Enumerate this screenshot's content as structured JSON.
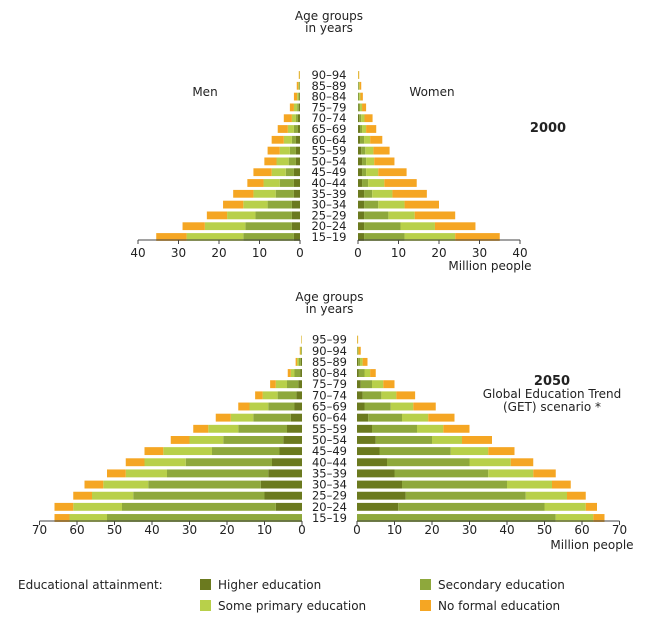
{
  "colors": {
    "higher": "#6b7a1f",
    "secondary": "#8ea83c",
    "primary": "#b8d04a",
    "none": "#f5a623"
  },
  "legend": {
    "title": "Educational attainment:",
    "items": [
      {
        "key": "higher",
        "label": "Higher education"
      },
      {
        "key": "secondary",
        "label": "Secondary education"
      },
      {
        "key": "primary",
        "label": "Some primary education"
      },
      {
        "key": "none",
        "label": "No formal education"
      }
    ]
  },
  "chart_data": [
    {
      "type": "bar",
      "title": "2000",
      "subtitle": "",
      "center_title": [
        "Age groups",
        "in years"
      ],
      "left_label": "Men",
      "right_label": "Women",
      "xlabel": "Million people",
      "xlim": [
        0,
        40
      ],
      "xticks": [
        0,
        10,
        20,
        30,
        40
      ],
      "categories": [
        "15–19",
        "20–24",
        "25–29",
        "30–34",
        "35–39",
        "40–44",
        "45–49",
        "50–54",
        "55–59",
        "60–64",
        "65–69",
        "70–74",
        "75–79",
        "80–84",
        "85–89",
        "90–94"
      ],
      "men": {
        "higher": [
          1.5,
          2,
          2,
          2,
          1.5,
          1.5,
          1.5,
          1,
          1,
          1,
          0.5,
          0.5,
          0.3,
          0.2,
          0.1,
          0.0
        ],
        "secondary": [
          12.5,
          11.5,
          9,
          6,
          4.5,
          3.5,
          2,
          1.8,
          1.5,
          1,
          1,
          0.5,
          0.4,
          0.2,
          0.1,
          0.0
        ],
        "primary": [
          14,
          10,
          7,
          6,
          5.5,
          4,
          3.5,
          3,
          2.5,
          2,
          1.5,
          1,
          0.8,
          0.3,
          0.2,
          0.1
        ],
        "none": [
          7.5,
          5.5,
          5,
          5,
          5,
          4,
          4.5,
          3,
          3,
          3,
          2.5,
          2,
          1,
          0.8,
          0.4,
          0.2
        ]
      },
      "women": {
        "higher": [
          1.5,
          1.5,
          1.5,
          1.5,
          1.5,
          1,
          1,
          1,
          0.8,
          0.5,
          0.5,
          0.3,
          0.2,
          0.1,
          0.1,
          0.0
        ],
        "secondary": [
          10,
          9,
          6,
          3.5,
          2,
          1.5,
          1,
          1,
          1,
          1,
          0.5,
          0.5,
          0.3,
          0.2,
          0.1,
          0.0
        ],
        "primary": [
          12.5,
          8.5,
          6.5,
          6.5,
          5,
          4,
          3,
          2,
          2,
          1.5,
          1,
          0.8,
          0.5,
          0.3,
          0.2,
          0.1
        ],
        "none": [
          11,
          10,
          10,
          8.5,
          8.5,
          8,
          7,
          5,
          4,
          3,
          2.5,
          2,
          1,
          0.6,
          0.4,
          0.2
        ]
      }
    },
    {
      "type": "bar",
      "title": "2050",
      "subtitle": [
        "Global Education Trend",
        "(GET) scenario *"
      ],
      "center_title": [
        "Age groups",
        "in years"
      ],
      "left_label": "",
      "right_label": "",
      "xlabel": "Million people",
      "xlim": [
        0,
        70
      ],
      "xticks": [
        0,
        10,
        20,
        30,
        40,
        50,
        60,
        70
      ],
      "categories": [
        "15–19",
        "20–24",
        "25–29",
        "30–34",
        "35–39",
        "40–44",
        "45–49",
        "50–54",
        "55–59",
        "60–64",
        "65–69",
        "70–74",
        "75–79",
        "80–84",
        "85–89",
        "90–94",
        "95–99"
      ],
      "men": {
        "higher": [
          0,
          7,
          10,
          11,
          9,
          8,
          6,
          5,
          4,
          3,
          2,
          1.5,
          1,
          0.5,
          0.3,
          0.1,
          0.0
        ],
        "secondary": [
          52,
          41,
          35,
          30,
          27,
          23,
          18,
          16,
          13,
          10,
          7,
          5,
          3,
          1.5,
          0.5,
          0.1,
          0.0
        ],
        "primary": [
          10,
          13,
          11,
          12,
          11,
          11,
          13,
          9,
          8,
          6,
          5,
          4,
          3,
          1,
          0.5,
          0.2,
          0.1
        ],
        "none": [
          4,
          5,
          5,
          5,
          5,
          5,
          5,
          5,
          4,
          4,
          3,
          2,
          1.5,
          0.8,
          0.4,
          0.2,
          0.1
        ]
      },
      "women": {
        "higher": [
          0,
          11,
          13,
          12,
          10,
          8,
          6,
          5,
          4,
          3,
          2,
          1.5,
          1,
          0.5,
          0.3,
          0.1,
          0.0
        ],
        "secondary": [
          53,
          39,
          32,
          28,
          25,
          22,
          19,
          15,
          12,
          9,
          7,
          5,
          3,
          1.5,
          0.5,
          0.1,
          0.0
        ],
        "primary": [
          10,
          11,
          11,
          12,
          12,
          11,
          10,
          8,
          7,
          7,
          6,
          4,
          3,
          1.5,
          0.7,
          0.2,
          0.1
        ],
        "none": [
          3,
          3,
          5,
          5,
          6,
          6,
          7,
          8,
          7,
          7,
          6,
          5,
          3,
          1.5,
          1.3,
          0.6,
          0.2
        ]
      }
    }
  ]
}
